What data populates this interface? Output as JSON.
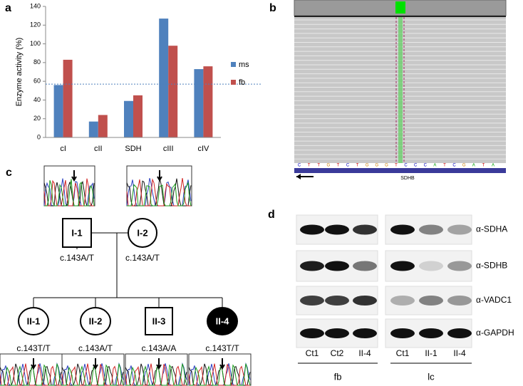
{
  "chart_data": {
    "type": "bar",
    "ylabel": "Enzyme activity (%)",
    "categories": [
      "cI",
      "cII",
      "SDH",
      "cIII",
      "cIV"
    ],
    "series": [
      {
        "name": "ms",
        "color": "#4f81bd",
        "values": [
          56,
          17,
          39,
          127,
          73
        ]
      },
      {
        "name": "fb",
        "color": "#c0504d",
        "values": [
          83,
          24,
          45,
          98,
          76
        ]
      }
    ],
    "ylim": [
      0,
      140
    ],
    "yticks": [
      0,
      20,
      40,
      60,
      80,
      100,
      120,
      140
    ],
    "reference_line": 57,
    "reference_color": "#4f81bd"
  },
  "panel_labels": [
    "a",
    "b",
    "c",
    "d"
  ],
  "igv": {
    "sequence": [
      "C",
      "T",
      "T",
      "G",
      "T",
      "C",
      "T",
      "G",
      "G",
      "G",
      "T",
      "C",
      "C",
      "C",
      "A",
      "T",
      "C",
      "G",
      "A",
      "T",
      "A"
    ],
    "gene": "SDHB"
  },
  "pedigree": {
    "parents": [
      {
        "id": "I-1",
        "genotype": "c.143A/T"
      },
      {
        "id": "I-2",
        "genotype": "c.143A/T"
      }
    ],
    "children": [
      {
        "id": "II-1",
        "genotype": "c.143T/T"
      },
      {
        "id": "II-2",
        "genotype": "c.143A/T"
      },
      {
        "id": "II-3",
        "genotype": "c.143A/A"
      },
      {
        "id": "II-4",
        "genotype": "c.143T/T"
      }
    ]
  },
  "blot": {
    "antibodies": [
      "α-SDHA",
      "α-SDHB",
      "α-VADC1",
      "α-GAPDH"
    ],
    "groups": [
      {
        "name": "fb",
        "lanes": [
          "Ct1",
          "Ct2",
          "II-4"
        ]
      },
      {
        "name": "lc",
        "lanes": [
          "Ct1",
          "II-1",
          "II-4"
        ]
      }
    ]
  }
}
